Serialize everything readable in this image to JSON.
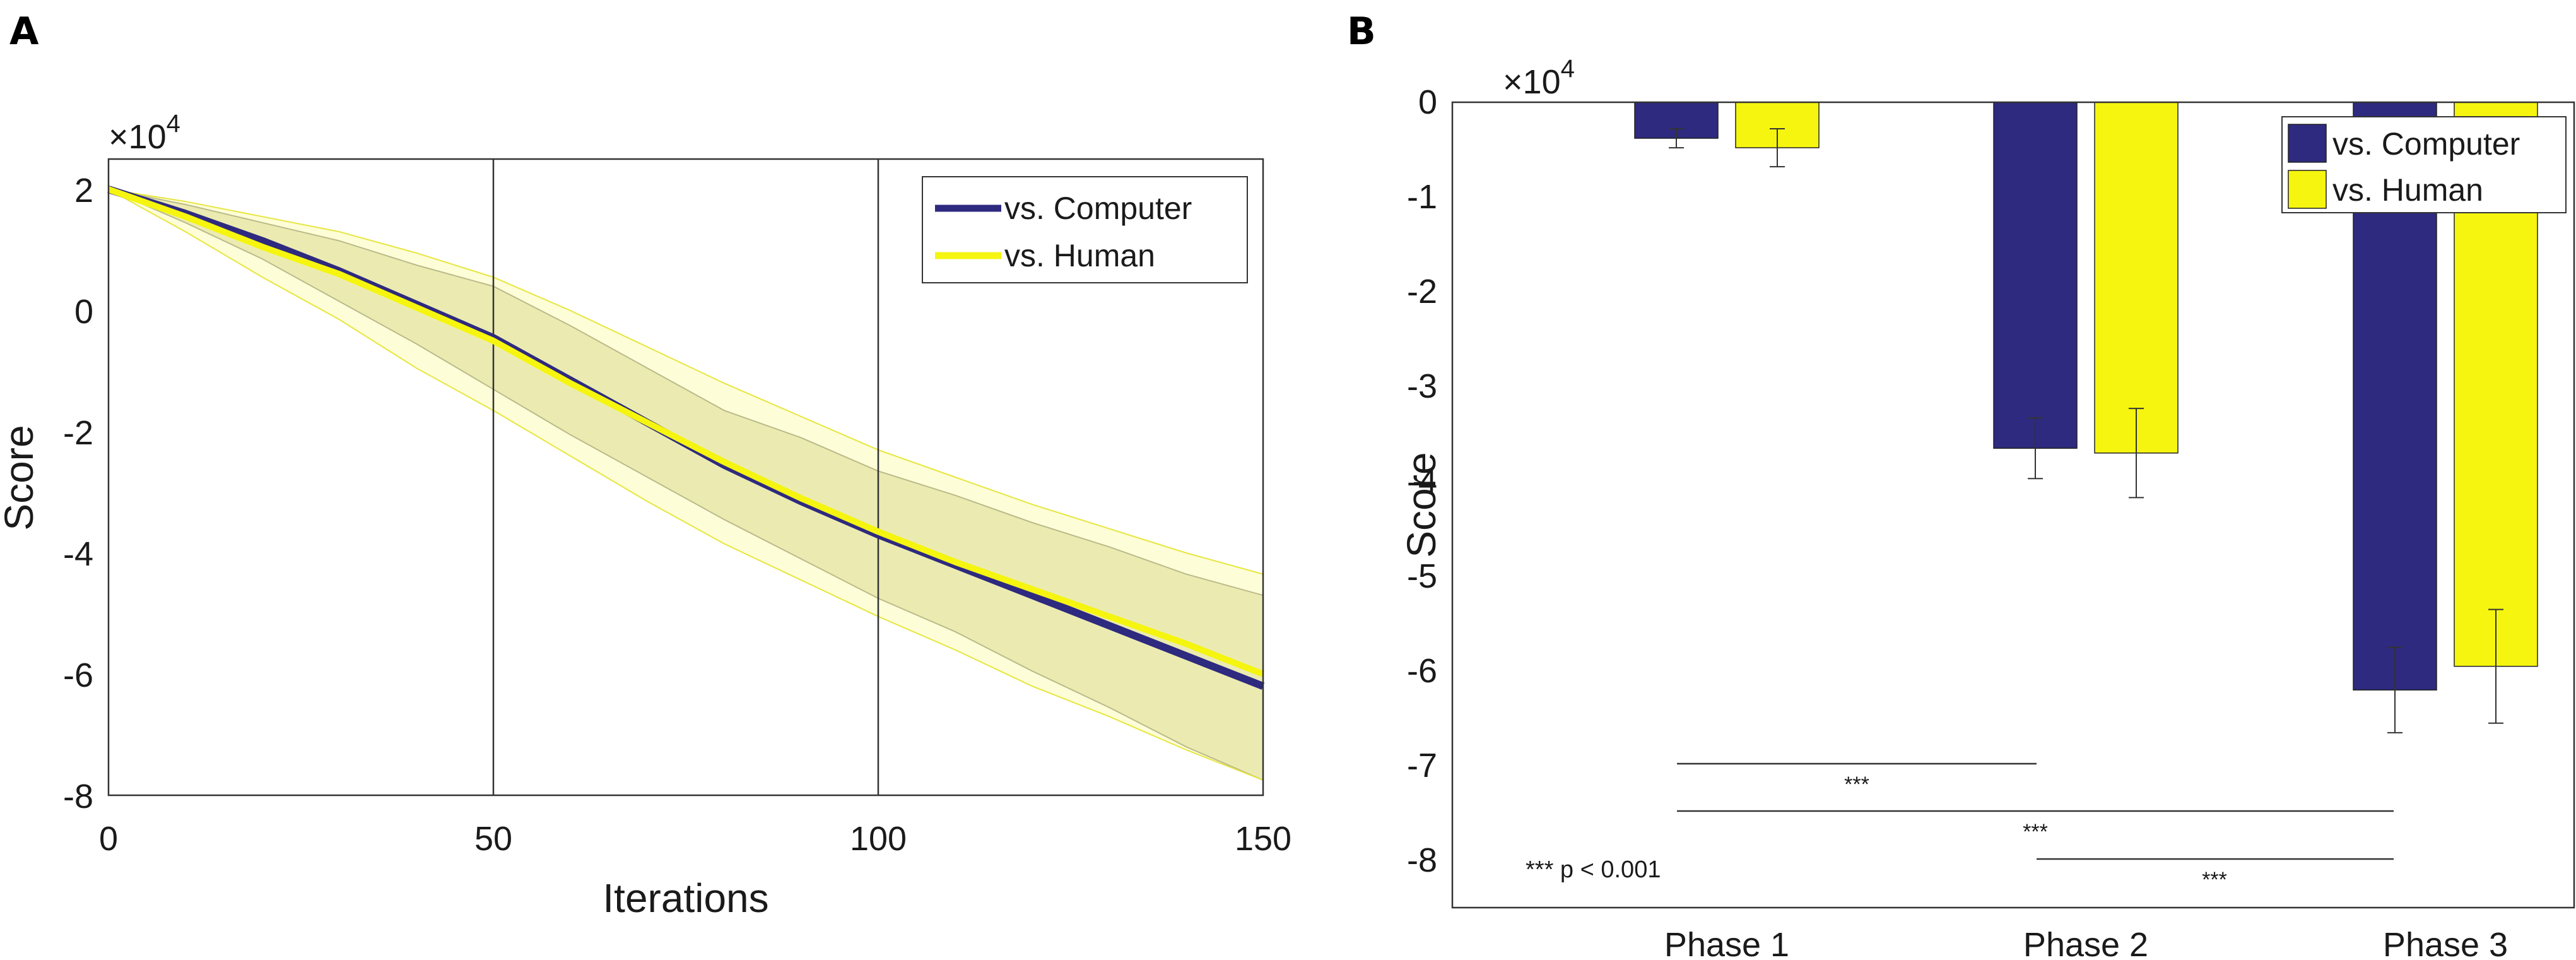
{
  "colors": {
    "computer": "#2e2a7f",
    "human": "#f5f50f",
    "band_fill": "#d6d6a8",
    "band_outer": "#fbfbb6",
    "axis": "#333333"
  },
  "panelA": {
    "letter": "A",
    "multiplier_text": "×10",
    "multiplier_exp": "4",
    "xlabel": "Iterations",
    "ylabel": "Score",
    "xticks": [
      "0",
      "50",
      "100",
      "150"
    ],
    "yticks": [
      "2",
      "0",
      "-2",
      "-4",
      "-6",
      "-8"
    ],
    "legend": {
      "computer": "vs. Computer",
      "human": "vs. Human"
    }
  },
  "panelB": {
    "letter": "B",
    "multiplier_text": "×10",
    "multiplier_exp": "4",
    "ylabel": "Score",
    "categories": [
      "Phase 1",
      "Phase 2",
      "Phase 3"
    ],
    "yticks": [
      "0",
      "-1",
      "-2",
      "-3",
      "-4",
      "-5",
      "-6",
      "-7",
      "-8"
    ],
    "legend": {
      "computer": "vs. Computer",
      "human": "vs. Human"
    },
    "significance": [
      "***",
      "***",
      "***"
    ],
    "note": "*** p < 0.001"
  },
  "chart_data": [
    {
      "type": "line",
      "title": "",
      "xlabel": "Iterations",
      "ylabel": "Score (×10^4)",
      "xlim": [
        0,
        150
      ],
      "ylim": [
        -8,
        2.5
      ],
      "x": [
        0,
        10,
        20,
        30,
        40,
        50,
        60,
        70,
        80,
        90,
        100,
        110,
        120,
        130,
        140,
        150
      ],
      "series": [
        {
          "name": "vs. Computer",
          "values": [
            2.0,
            1.6,
            1.15,
            0.65,
            0.1,
            -0.45,
            -1.15,
            -1.85,
            -2.55,
            -3.15,
            -3.7,
            -4.2,
            -4.7,
            -5.2,
            -5.7,
            -6.2
          ],
          "lower": [
            2.0,
            1.45,
            0.85,
            0.15,
            -0.55,
            -1.3,
            -2.05,
            -2.75,
            -3.45,
            -4.1,
            -4.75,
            -5.3,
            -5.95,
            -6.55,
            -7.2,
            -7.75
          ],
          "upper": [
            2.0,
            1.75,
            1.45,
            1.15,
            0.75,
            0.4,
            -0.25,
            -0.95,
            -1.65,
            -2.1,
            -2.65,
            -3.05,
            -3.5,
            -3.9,
            -4.35,
            -4.7
          ]
        },
        {
          "name": "vs. Human",
          "values": [
            2.0,
            1.55,
            1.05,
            0.6,
            0.05,
            -0.5,
            -1.2,
            -1.85,
            -2.5,
            -3.1,
            -3.65,
            -4.15,
            -4.6,
            -5.05,
            -5.5,
            -6.0
          ],
          "lower": [
            2.0,
            1.3,
            0.55,
            -0.15,
            -0.95,
            -1.65,
            -2.4,
            -3.15,
            -3.85,
            -4.45,
            -5.05,
            -5.6,
            -6.2,
            -6.7,
            -7.25,
            -7.75
          ],
          "upper": [
            2.0,
            1.8,
            1.55,
            1.3,
            0.95,
            0.55,
            0.0,
            -0.6,
            -1.2,
            -1.75,
            -2.3,
            -2.75,
            -3.2,
            -3.6,
            -4.0,
            -4.35
          ]
        }
      ],
      "vlines": [
        50,
        100
      ]
    },
    {
      "type": "bar",
      "title": "",
      "xlabel": "",
      "ylabel": "Score (×10^4)",
      "ylim": [
        -8.5,
        0
      ],
      "categories": [
        "Phase 1",
        "Phase 2",
        "Phase 3"
      ],
      "series": [
        {
          "name": "vs. Computer",
          "values": [
            -0.38,
            -3.65,
            -6.2
          ],
          "errors": [
            0.1,
            0.32,
            0.45
          ]
        },
        {
          "name": "vs. Human",
          "values": [
            -0.48,
            -3.7,
            -5.95
          ],
          "errors": [
            0.2,
            0.47,
            0.6
          ]
        }
      ],
      "significance_pairs": [
        [
          "Phase 1",
          "Phase 2"
        ],
        [
          "Phase 1",
          "Phase 3"
        ],
        [
          "Phase 2",
          "Phase 3"
        ]
      ]
    }
  ]
}
